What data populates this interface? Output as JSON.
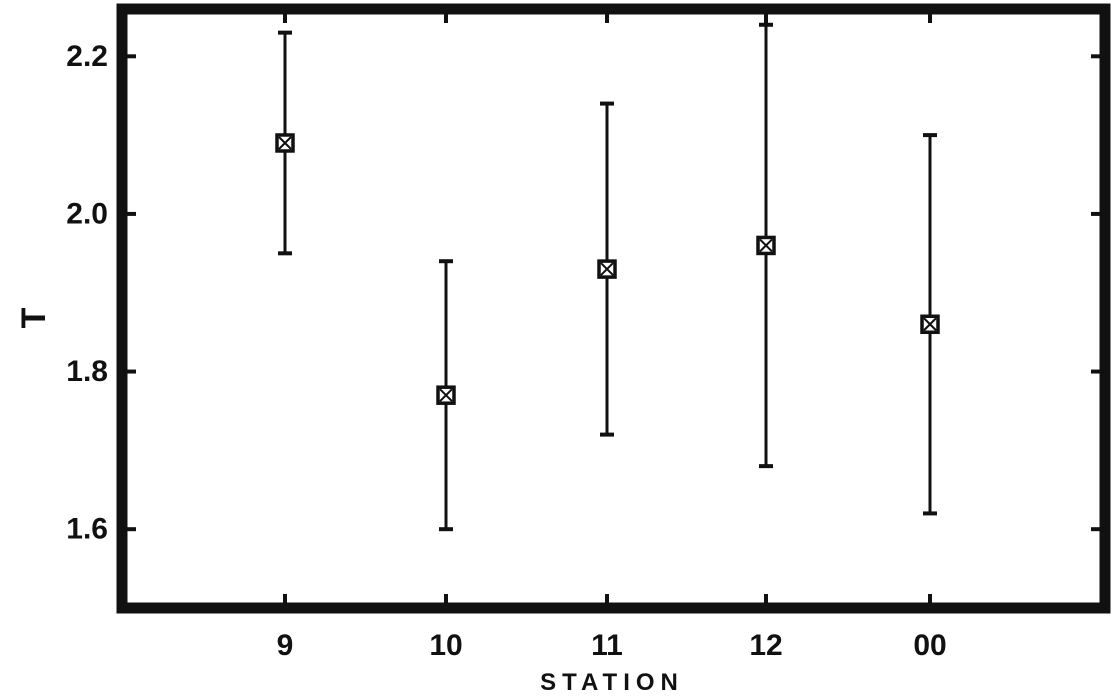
{
  "chart_data": {
    "type": "scatter",
    "title": "",
    "xlabel": "STATION",
    "ylabel": "T",
    "ylim": [
      1.5,
      2.26
    ],
    "yticks": [
      "1.6",
      "1.8",
      "2.0",
      "2.2"
    ],
    "grid": false,
    "categories": [
      "9",
      "10",
      "11",
      "12",
      "00"
    ],
    "series": [
      {
        "values": [
          2.09,
          1.77,
          1.93,
          1.96,
          1.86
        ],
        "error_low": [
          1.95,
          1.6,
          1.72,
          1.68,
          1.62
        ],
        "error_high": [
          2.23,
          1.94,
          2.14,
          2.24,
          2.1
        ]
      }
    ],
    "marker": "square-with-x",
    "color": "#111111"
  }
}
